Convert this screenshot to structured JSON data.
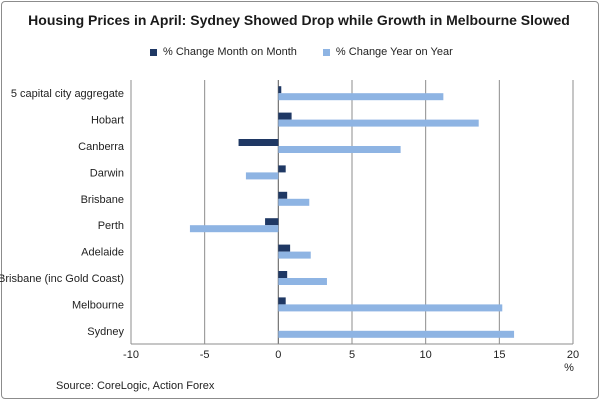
{
  "chart_data": {
    "type": "bar",
    "orientation": "horizontal",
    "title": "Housing Prices in April: Sydney Showed Drop while Growth in Melbourne Slowed",
    "categories": [
      "5 capital city aggregate",
      "Hobart",
      "Canberra",
      "Darwin",
      "Brisbane",
      "Perth",
      "Adelaide",
      "Brisbane (inc Gold Coast)",
      "Melbourne",
      "Sydney"
    ],
    "series": [
      {
        "name": "% Change Month on Month",
        "color": "#1f3864",
        "values": [
          0.2,
          0.9,
          -2.7,
          0.5,
          0.6,
          -0.9,
          0.8,
          0.6,
          0.5,
          0.0
        ]
      },
      {
        "name": "% Change Year on Year",
        "color": "#8eb4e3",
        "values": [
          11.2,
          13.6,
          8.3,
          -2.2,
          2.1,
          -6.0,
          2.2,
          3.3,
          15.2,
          16.0
        ]
      }
    ],
    "xlim": [
      -10,
      20
    ],
    "xticks": [
      "-10",
      "-5",
      "0",
      "5",
      "10",
      "15",
      "20"
    ],
    "xticks_values": [
      -10,
      -5,
      0,
      5,
      10,
      15,
      20
    ],
    "xlabel": "%",
    "grid": true,
    "legend_position": "top"
  },
  "source": "Source: CoreLogic, Action Forex"
}
